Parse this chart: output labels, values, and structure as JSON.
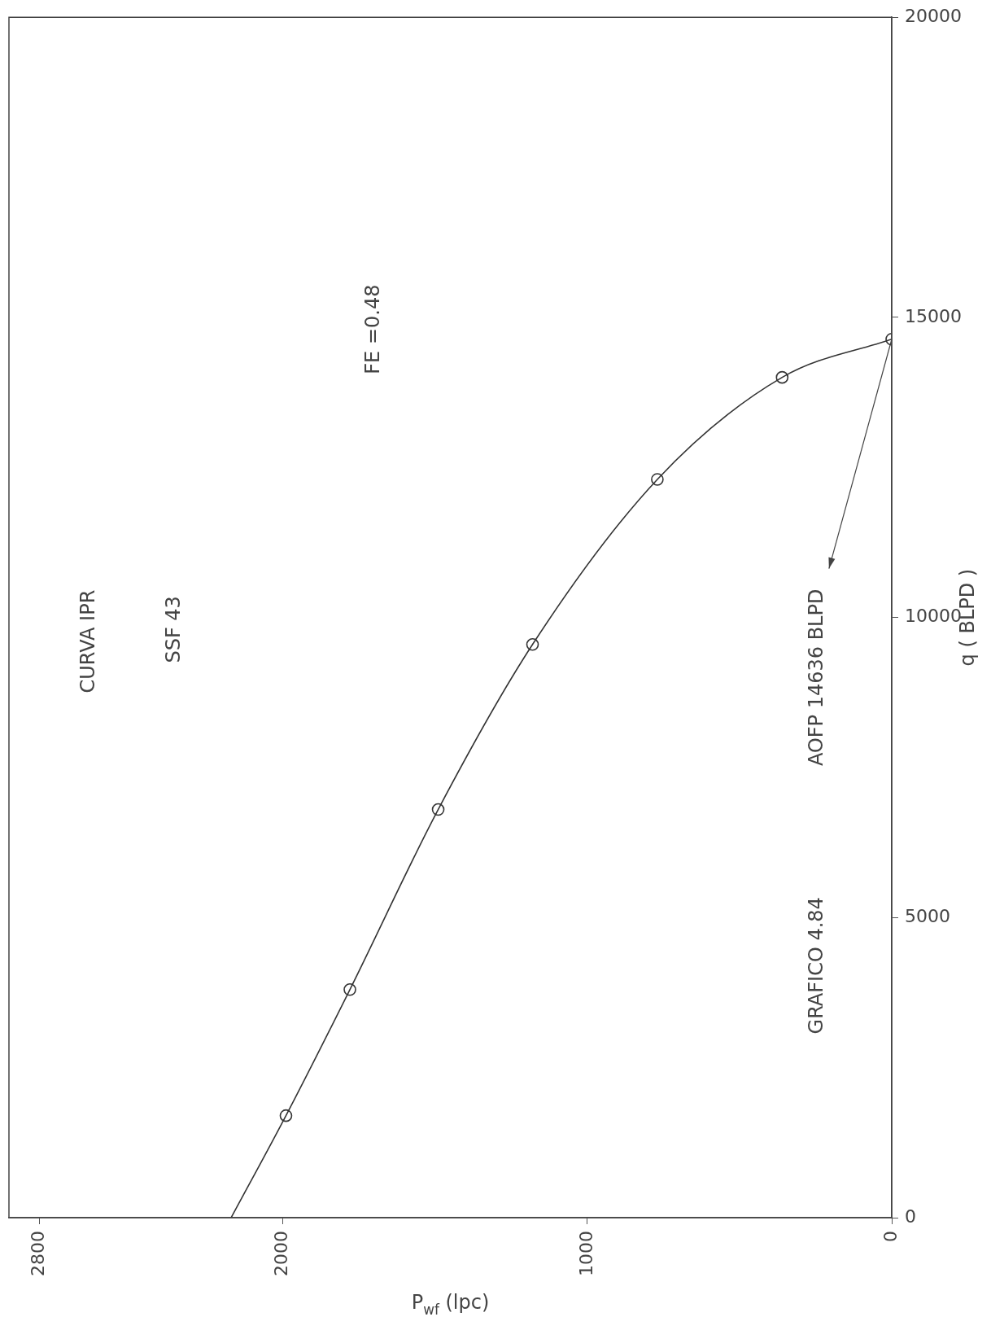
{
  "chart_data": {
    "type": "scatter",
    "xlabel": "P$_{wf}$ (lpc)",
    "ylabel": "q ( BLPD )",
    "xlim": [
      2900,
      0
    ],
    "xticks": [
      2800,
      2000,
      1000,
      0
    ],
    "ylim": [
      0,
      20000
    ],
    "yticks": [
      0,
      5000,
      10000,
      15000,
      20000
    ],
    "grid": false,
    "legend": false,
    "series": [
      {
        "type": "line",
        "color": "#333333",
        "marker": "none",
        "line_style": "solid",
        "x": [
          2170,
          1990,
          1780,
          1490,
          1180,
          770,
          360,
          0
        ],
        "values": [
          0,
          1700,
          3800,
          6800,
          9550,
          12300,
          14000,
          14636
        ]
      },
      {
        "type": "scatter",
        "color": "#333333",
        "marker": "circle",
        "x": [
          1990,
          1780,
          1490,
          1180,
          770,
          360,
          0
        ],
        "values": [
          1700,
          3800,
          6800,
          9550,
          12300,
          14000,
          14636
        ]
      }
    ],
    "annotations": [
      "CURVA IPR",
      "SSF 43",
      "FE =0.48",
      "GRAFICO 4.84",
      {
        "text": "AOFP 14636 BLPD",
        "x": 0,
        "y": 14636
      }
    ]
  }
}
